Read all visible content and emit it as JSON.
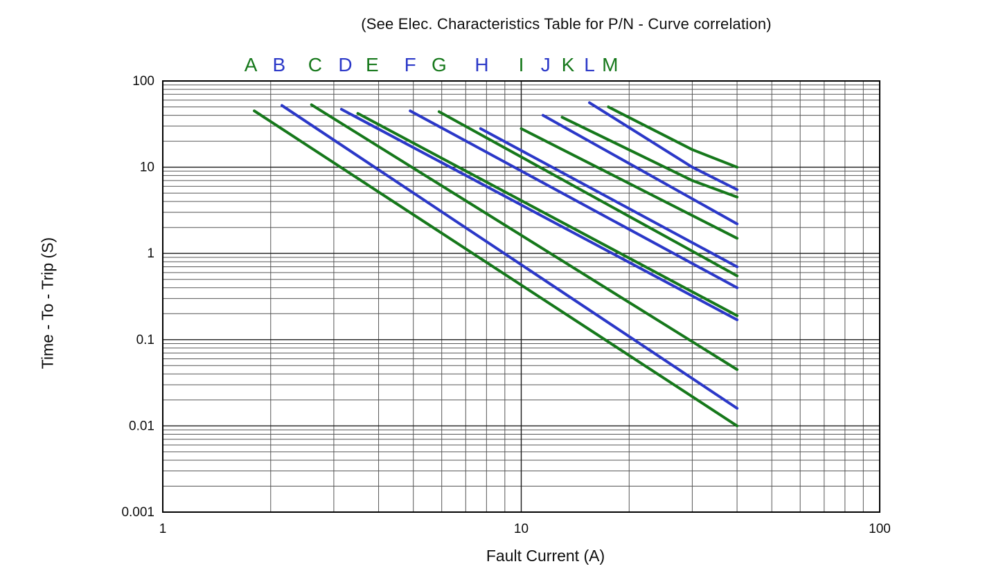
{
  "chart_data": {
    "type": "line",
    "title": "(See Elec. Characteristics Table for P/N - Curve correlation)",
    "xlabel": "Fault Current (A)",
    "ylabel": "Time - To - Trip (S)",
    "x_scale": "log",
    "y_scale": "log",
    "xlim": [
      1,
      100
    ],
    "ylim": [
      0.001,
      100
    ],
    "grid": "log-log with major and minor gridlines",
    "legend_position": "letters above plot at each curve start",
    "x_ticks": [
      {
        "value": 1,
        "label": "1"
      },
      {
        "value": 10,
        "label": "10"
      },
      {
        "value": 100,
        "label": "100"
      }
    ],
    "y_ticks": [
      {
        "value": 100,
        "label": "100"
      },
      {
        "value": 10,
        "label": "10"
      },
      {
        "value": 1,
        "label": "1"
      },
      {
        "value": 0.1,
        "label": "0.1"
      },
      {
        "value": 0.01,
        "label": "0.01"
      },
      {
        "value": 0.001,
        "label": "0.001"
      }
    ],
    "colors": {
      "green": "#16781b",
      "blue": "#2b38c8",
      "grid_major": "#1a1a1a",
      "grid_minor": "#555555",
      "text": "#0d0d0d"
    },
    "series": [
      {
        "label": "A",
        "color": "green",
        "label_x": 1.76,
        "points": [
          [
            1.8,
            45
          ],
          [
            40,
            0.01
          ]
        ]
      },
      {
        "label": "B",
        "color": "blue",
        "label_x": 2.11,
        "points": [
          [
            2.15,
            52
          ],
          [
            40,
            0.016
          ]
        ]
      },
      {
        "label": "C",
        "color": "green",
        "label_x": 2.66,
        "points": [
          [
            2.6,
            53
          ],
          [
            40,
            0.045
          ]
        ]
      },
      {
        "label": "D",
        "color": "blue",
        "label_x": 3.23,
        "points": [
          [
            3.15,
            47
          ],
          [
            40,
            0.17
          ]
        ]
      },
      {
        "label": "E",
        "color": "green",
        "label_x": 3.84,
        "points": [
          [
            3.5,
            42
          ],
          [
            40,
            0.19
          ]
        ]
      },
      {
        "label": "F",
        "color": "blue",
        "label_x": 4.9,
        "points": [
          [
            4.9,
            45
          ],
          [
            40,
            0.4
          ]
        ]
      },
      {
        "label": "G",
        "color": "green",
        "label_x": 5.9,
        "points": [
          [
            5.9,
            44
          ],
          [
            40,
            0.55
          ]
        ]
      },
      {
        "label": "H",
        "color": "blue",
        "label_x": 7.76,
        "points": [
          [
            7.7,
            28
          ],
          [
            40,
            0.7
          ]
        ]
      },
      {
        "label": "I",
        "color": "green",
        "label_x": 10.0,
        "points": [
          [
            10,
            28
          ],
          [
            40,
            1.5
          ]
        ]
      },
      {
        "label": "J",
        "color": "blue",
        "label_x": 11.7,
        "points": [
          [
            11.5,
            40
          ],
          [
            40,
            2.2
          ]
        ]
      },
      {
        "label": "K",
        "color": "green",
        "label_x": 13.5,
        "points": [
          [
            13,
            38
          ],
          [
            30,
            7
          ],
          [
            40,
            4.5
          ]
        ]
      },
      {
        "label": "L",
        "color": "blue",
        "label_x": 15.5,
        "points": [
          [
            15.5,
            56
          ],
          [
            30,
            10
          ],
          [
            40,
            5.5
          ]
        ]
      },
      {
        "label": "M",
        "color": "green",
        "label_x": 17.7,
        "points": [
          [
            17.5,
            50
          ],
          [
            30,
            16
          ],
          [
            40,
            10
          ]
        ]
      }
    ]
  }
}
